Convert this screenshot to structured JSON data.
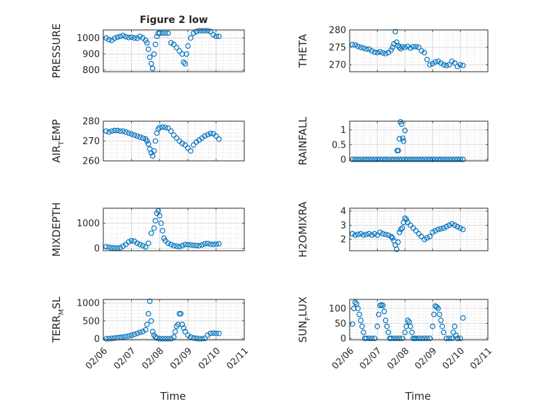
{
  "figure": {
    "title": "Figure 2 low",
    "marker_color": "#0072BD",
    "grid_color": "#b0b0b0",
    "background": "#ffffff"
  },
  "chart_data": [
    {
      "type": "scatter",
      "title": "Figure 2 low",
      "ylabel": "PRESSURE",
      "ylim": [
        790,
        1050
      ],
      "yticks": [
        800,
        900,
        1000
      ],
      "ytick_labels": [
        "800",
        "900",
        "1000"
      ],
      "xlim_days": [
        0,
        5
      ],
      "xtick_labels": [
        "02/06",
        "02/07",
        "02/08",
        "02/09",
        "02/10",
        "02/11"
      ],
      "grid": true,
      "series": [
        {
          "x": [
            0.1,
            0.2,
            0.3,
            0.4,
            0.5,
            0.6,
            0.7,
            0.8,
            0.9,
            1.0,
            1.1,
            1.2,
            1.3,
            1.4,
            1.5,
            1.55,
            1.6,
            1.65,
            1.7,
            1.75,
            1.8,
            1.85,
            1.9,
            1.95,
            2.0,
            2.1,
            2.2,
            2.3,
            2.4,
            2.5,
            2.6,
            2.7,
            2.8,
            2.85,
            2.9,
            2.95,
            3.0,
            3.1,
            3.2,
            3.3,
            3.4,
            3.5,
            3.6,
            3.7,
            3.8,
            3.9,
            4.0,
            4.1
          ],
          "values": [
            1000,
            990,
            985,
            998,
            1005,
            1010,
            1015,
            1008,
            1003,
            1005,
            1000,
            998,
            1010,
            1000,
            985,
            970,
            930,
            880,
            840,
            810,
            900,
            960,
            1010,
            1030,
            1030,
            1030,
            1030,
            1030,
            970,
            960,
            940,
            920,
            900,
            850,
            840,
            900,
            950,
            1000,
            1030,
            1040,
            1045,
            1045,
            1045,
            1045,
            1040,
            1020,
            1010,
            1010
          ]
        }
      ],
      "xlabel": ""
    },
    {
      "type": "scatter",
      "ylabel": "THETA",
      "ylim": [
        268,
        280
      ],
      "yticks": [
        270,
        275,
        280
      ],
      "ytick_labels": [
        "270",
        "275",
        "280"
      ],
      "xlim_days": [
        0,
        5
      ],
      "xtick_labels": [
        "02/06",
        "02/07",
        "02/08",
        "02/09",
        "02/10",
        "02/11"
      ],
      "grid": true,
      "series": [
        {
          "x": [
            0.1,
            0.2,
            0.3,
            0.4,
            0.5,
            0.6,
            0.7,
            0.8,
            0.9,
            1.0,
            1.1,
            1.2,
            1.3,
            1.4,
            1.5,
            1.55,
            1.6,
            1.65,
            1.7,
            1.75,
            1.8,
            1.85,
            1.9,
            2.0,
            2.1,
            2.2,
            2.3,
            2.4,
            2.5,
            2.6,
            2.7,
            2.8,
            2.9,
            3.0,
            3.1,
            3.2,
            3.3,
            3.4,
            3.5,
            3.6,
            3.7,
            3.8,
            3.9,
            4.0,
            4.1
          ],
          "values": [
            275.8,
            275.7,
            275.3,
            275,
            274.8,
            274.5,
            274.5,
            274,
            273.6,
            273.5,
            273.7,
            273.4,
            273.2,
            273.5,
            274.2,
            275,
            276,
            279.5,
            276.5,
            275.5,
            275,
            274.6,
            275.2,
            275,
            275.3,
            274.8,
            275.2,
            275.2,
            275,
            274,
            273.5,
            271.5,
            270,
            270.3,
            270.8,
            271,
            270.5,
            270,
            269.8,
            270,
            271,
            270.5,
            269.5,
            270,
            269.8
          ]
        }
      ],
      "xlabel": ""
    },
    {
      "type": "scatter",
      "ylabel": "AIR_TEMP",
      "ylabel_main_a": "AIR",
      "ylabel_sub": "T",
      "ylabel_main_b": "EMP",
      "ylim": [
        260,
        280
      ],
      "yticks": [
        260,
        270,
        280
      ],
      "ytick_labels": [
        "260",
        "270",
        "280"
      ],
      "xlim_days": [
        0,
        5
      ],
      "xtick_labels": [
        "02/06",
        "02/07",
        "02/08",
        "02/09",
        "02/10",
        "02/11"
      ],
      "grid": true,
      "series": [
        {
          "x": [
            0.1,
            0.2,
            0.3,
            0.4,
            0.5,
            0.6,
            0.7,
            0.8,
            0.9,
            1.0,
            1.1,
            1.2,
            1.3,
            1.4,
            1.5,
            1.55,
            1.6,
            1.65,
            1.7,
            1.75,
            1.8,
            1.85,
            1.9,
            1.95,
            2.0,
            2.1,
            2.2,
            2.3,
            2.4,
            2.5,
            2.6,
            2.7,
            2.8,
            2.9,
            3.0,
            3.1,
            3.2,
            3.3,
            3.4,
            3.5,
            3.6,
            3.7,
            3.8,
            3.9,
            4.0,
            4.1
          ],
          "values": [
            275,
            274.5,
            275,
            275.3,
            275.3,
            275,
            275,
            274.5,
            274,
            273.5,
            273,
            272.5,
            272,
            271.5,
            271,
            270,
            268.5,
            266,
            264,
            262.5,
            265,
            270,
            274,
            276,
            276.8,
            277,
            276.8,
            276.5,
            275,
            273,
            271.5,
            270,
            268.8,
            268,
            266.5,
            265,
            268,
            269.5,
            270.5,
            271.5,
            272.5,
            273.2,
            273.8,
            273.7,
            272.5,
            271
          ]
        }
      ],
      "xlabel": ""
    },
    {
      "type": "scatter",
      "ylabel": "RAINFALL",
      "ylim": [
        -0.05,
        1.3
      ],
      "yticks": [
        0,
        0.5,
        1
      ],
      "ytick_labels": [
        "0",
        "0.5",
        "1"
      ],
      "xlim_days": [
        0,
        5
      ],
      "xtick_labels": [
        "02/06",
        "02/07",
        "02/08",
        "02/09",
        "02/10",
        "02/11"
      ],
      "grid": true,
      "series": [
        {
          "x": [
            0.1,
            0.2,
            0.3,
            0.4,
            0.5,
            0.6,
            0.7,
            0.8,
            0.9,
            1.0,
            1.1,
            1.2,
            1.3,
            1.4,
            1.5,
            1.6,
            1.7,
            1.8,
            1.9,
            2.0,
            2.1,
            2.2,
            2.3,
            2.4,
            2.5,
            2.6,
            2.7,
            2.8,
            2.9,
            3.0,
            3.1,
            3.2,
            3.3,
            3.4,
            3.5,
            3.6,
            3.7,
            3.8,
            3.9,
            4.0,
            4.1,
            1.72,
            1.76,
            1.8,
            1.84,
            1.88,
            1.92,
            1.95,
            2.0
          ],
          "values": [
            0,
            0,
            0,
            0,
            0,
            0,
            0,
            0,
            0,
            0,
            0,
            0,
            0,
            0,
            0,
            0,
            0,
            0,
            0,
            0,
            0,
            0,
            0,
            0,
            0,
            0,
            0,
            0,
            0,
            0,
            0,
            0,
            0,
            0,
            0,
            0,
            0,
            0,
            0,
            0,
            0,
            0.3,
            0.3,
            0.7,
            1.28,
            1.2,
            0.72,
            0.62,
            0.98
          ]
        }
      ],
      "xlabel": ""
    },
    {
      "type": "scatter",
      "ylabel": "MIXDEPTH",
      "ylim": [
        -100,
        1600
      ],
      "yticks": [
        0,
        1000
      ],
      "ytick_labels": [
        "0",
        "1000"
      ],
      "xlim_days": [
        0,
        5
      ],
      "xtick_labels": [
        "02/06",
        "02/07",
        "02/08",
        "02/09",
        "02/10",
        "02/11"
      ],
      "grid": true,
      "series": [
        {
          "x": [
            0.1,
            0.2,
            0.3,
            0.4,
            0.5,
            0.6,
            0.7,
            0.8,
            0.9,
            1.0,
            1.1,
            1.2,
            1.3,
            1.4,
            1.5,
            1.6,
            1.7,
            1.8,
            1.85,
            1.9,
            1.95,
            2.0,
            2.05,
            2.1,
            2.15,
            2.2,
            2.3,
            2.4,
            2.5,
            2.6,
            2.7,
            2.8,
            2.9,
            3.0,
            3.1,
            3.2,
            3.3,
            3.4,
            3.5,
            3.6,
            3.7,
            3.8,
            3.9,
            4.0,
            4.1
          ],
          "values": [
            60,
            40,
            20,
            10,
            5,
            20,
            80,
            150,
            250,
            300,
            280,
            200,
            150,
            100,
            50,
            200,
            600,
            800,
            1100,
            1400,
            1500,
            1300,
            1000,
            700,
            400,
            300,
            200,
            150,
            100,
            80,
            60,
            100,
            150,
            140,
            130,
            120,
            110,
            100,
            130,
            180,
            190,
            160,
            150,
            160,
            180
          ]
        }
      ],
      "xlabel": ""
    },
    {
      "type": "scatter",
      "ylabel": "H2OMIXRA",
      "ylim": [
        1.2,
        4.2
      ],
      "yticks": [
        2,
        3,
        4
      ],
      "ytick_labels": [
        "2",
        "3",
        "4"
      ],
      "xlim_days": [
        0,
        5
      ],
      "xtick_labels": [
        "02/06",
        "02/07",
        "02/08",
        "02/09",
        "02/10",
        "02/11"
      ],
      "grid": true,
      "series": [
        {
          "x": [
            0.1,
            0.2,
            0.3,
            0.4,
            0.5,
            0.6,
            0.7,
            0.8,
            0.9,
            1.0,
            1.1,
            1.2,
            1.3,
            1.4,
            1.5,
            1.55,
            1.6,
            1.65,
            1.7,
            1.75,
            1.8,
            1.85,
            1.9,
            1.95,
            2.0,
            2.05,
            2.1,
            2.2,
            2.3,
            2.4,
            2.5,
            2.6,
            2.7,
            2.8,
            2.9,
            3.0,
            3.1,
            3.2,
            3.3,
            3.4,
            3.5,
            3.6,
            3.7,
            3.8,
            3.9,
            4.0,
            4.1
          ],
          "values": [
            2.4,
            2.3,
            2.35,
            2.4,
            2.3,
            2.35,
            2.4,
            2.3,
            2.4,
            2.3,
            2.5,
            2.4,
            2.35,
            2.3,
            2.2,
            2.1,
            1.9,
            1.6,
            1.3,
            1.8,
            2.5,
            2.7,
            2.8,
            3.2,
            3.5,
            3.4,
            3.2,
            3.0,
            2.8,
            2.6,
            2.4,
            2.2,
            2.0,
            2.1,
            2.2,
            2.5,
            2.6,
            2.7,
            2.75,
            2.8,
            2.9,
            3.0,
            3.1,
            3.0,
            2.9,
            2.8,
            2.7
          ]
        }
      ],
      "xlabel": ""
    },
    {
      "type": "scatter",
      "ylabel": "TERR_MSL",
      "ylabel_main_a": "TERR",
      "ylabel_sub": "M",
      "ylabel_main_b": "SL",
      "ylim": [
        -30,
        1100
      ],
      "yticks": [
        0,
        500,
        1000
      ],
      "ytick_labels": [
        "0",
        "500",
        "1000"
      ],
      "xlim_days": [
        0,
        5
      ],
      "xtick_labels": [
        "02/06",
        "02/07",
        "02/08",
        "02/09",
        "02/10",
        "02/11"
      ],
      "grid": true,
      "series": [
        {
          "x": [
            0.1,
            0.2,
            0.3,
            0.4,
            0.5,
            0.6,
            0.7,
            0.8,
            0.9,
            1.0,
            1.1,
            1.2,
            1.3,
            1.4,
            1.5,
            1.55,
            1.6,
            1.65,
            1.7,
            1.75,
            1.8,
            1.85,
            1.9,
            2.0,
            2.1,
            2.2,
            2.3,
            2.4,
            2.5,
            2.55,
            2.6,
            2.65,
            2.7,
            2.75,
            2.8,
            2.85,
            2.9,
            3.0,
            3.1,
            3.2,
            3.3,
            3.4,
            3.5,
            3.6,
            3.7,
            3.8,
            3.9,
            4.0,
            4.1
          ],
          "values": [
            0,
            0,
            10,
            20,
            30,
            40,
            50,
            60,
            80,
            100,
            120,
            150,
            180,
            200,
            250,
            400,
            700,
            1050,
            500,
            200,
            100,
            50,
            20,
            0,
            0,
            0,
            0,
            0,
            50,
            200,
            350,
            400,
            700,
            700,
            400,
            300,
            200,
            100,
            50,
            20,
            10,
            0,
            0,
            10,
            100,
            150,
            160,
            150,
            150
          ]
        }
      ],
      "xlabel": "Time"
    },
    {
      "type": "scatter",
      "ylabel": "SUN_FLUX",
      "ylabel_main_a": "SUN",
      "ylabel_sub": "F",
      "ylabel_main_b": "LUX",
      "ylim": [
        -5,
        130
      ],
      "yticks": [
        0,
        50,
        100
      ],
      "ytick_labels": [
        "0",
        "50",
        "100"
      ],
      "xlim_days": [
        0,
        5
      ],
      "xtick_labels": [
        "02/06",
        "02/07",
        "02/08",
        "02/09",
        "02/10",
        "02/11"
      ],
      "grid": true,
      "series": [
        {
          "x": [
            0.1,
            0.15,
            0.2,
            0.25,
            0.3,
            0.35,
            0.4,
            0.45,
            0.5,
            0.55,
            0.6,
            0.7,
            0.8,
            0.9,
            1.0,
            1.05,
            1.1,
            1.15,
            1.2,
            1.25,
            1.3,
            1.35,
            1.4,
            1.45,
            1.5,
            1.6,
            1.7,
            1.8,
            1.9,
            2.0,
            2.05,
            2.1,
            2.15,
            2.2,
            2.25,
            2.3,
            2.35,
            2.4,
            2.5,
            2.6,
            2.7,
            2.8,
            2.9,
            3.0,
            3.05,
            3.1,
            3.15,
            3.2,
            3.25,
            3.3,
            3.35,
            3.4,
            3.5,
            3.6,
            3.7,
            3.75,
            3.8,
            3.85,
            3.9,
            4.0,
            4.1
          ],
          "values": [
            48,
            100,
            120,
            115,
            100,
            80,
            60,
            40,
            20,
            0,
            0,
            0,
            0,
            0,
            40,
            80,
            110,
            112,
            110,
            90,
            60,
            40,
            20,
            0,
            0,
            0,
            0,
            0,
            0,
            20,
            40,
            60,
            55,
            40,
            20,
            0,
            0,
            0,
            0,
            0,
            0,
            0,
            0,
            40,
            80,
            108,
            105,
            100,
            80,
            60,
            40,
            20,
            0,
            0,
            0,
            20,
            40,
            10,
            0,
            0,
            68
          ]
        }
      ],
      "xlabel": "Time"
    }
  ]
}
